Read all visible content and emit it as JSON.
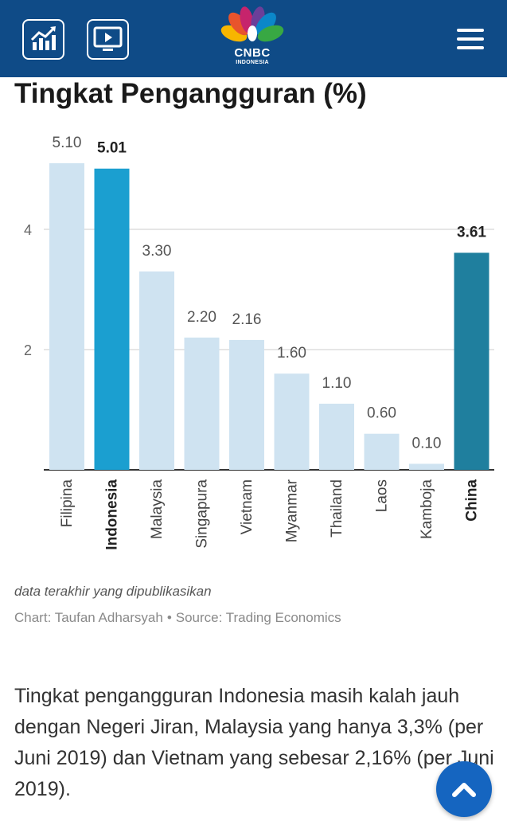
{
  "header": {
    "logo_main": "CNBC",
    "logo_sub": "INDONESIA",
    "icons": [
      "market-chart-icon",
      "tv-play-icon",
      "nbc-peacock-icon",
      "hamburger-menu-icon"
    ],
    "background_color": "#0f4b87"
  },
  "article": {
    "note": "data terakhir yang dipublikasikan",
    "credit_author": "Chart: Taufan Adharsyah",
    "credit_separator": "•",
    "credit_source": "Source: Trading Economics",
    "paragraph": "Tingkat pengangguran Indonesia masih kalah jauh dengan Negeri Jiran, Malaysia yang hanya 3,3% (per Juni 2019) dan Vietnam yang sebesar 2,16% (per Juni 2019)."
  },
  "chart_data": {
    "type": "bar",
    "title": "Tingkat Pengangguran (%)",
    "categories": [
      "Filipina",
      "Indonesia",
      "Malaysia",
      "Singapura",
      "Vietnam",
      "Myanmar",
      "Thailand",
      "Laos",
      "Kamboja",
      "China"
    ],
    "values": [
      5.1,
      5.01,
      3.3,
      2.2,
      2.16,
      1.6,
      1.1,
      0.6,
      0.1,
      3.61
    ],
    "value_labels": [
      "5.10",
      "5.01",
      "3.30",
      "2.20",
      "2.16",
      "1.60",
      "1.10",
      "0.60",
      "0.10",
      "3.61"
    ],
    "highlighted": [
      "Indonesia",
      "China"
    ],
    "colors": {
      "default": "#cfe3f1",
      "Indonesia": "#1b9fd0",
      "China": "#1f7f9e",
      "gridline": "#dddddd",
      "axis": "#333333"
    },
    "yticks": [
      2,
      4
    ],
    "ylim": [
      0,
      5.2
    ],
    "grid": true,
    "legend": "none"
  }
}
